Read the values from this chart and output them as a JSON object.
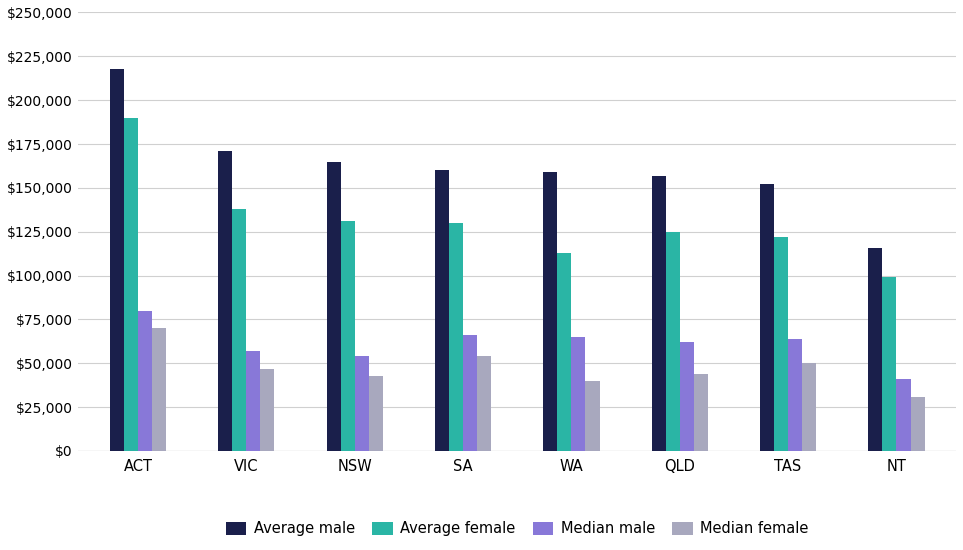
{
  "categories": [
    "ACT",
    "VIC",
    "NSW",
    "SA",
    "WA",
    "QLD",
    "TAS",
    "NT"
  ],
  "series": {
    "Average male": [
      218000,
      171000,
      165000,
      160000,
      159000,
      157000,
      152000,
      116000
    ],
    "Average female": [
      190000,
      138000,
      131000,
      130000,
      113000,
      125000,
      122000,
      99000
    ],
    "Median male": [
      80000,
      57000,
      54000,
      66000,
      65000,
      62000,
      64000,
      41000
    ],
    "Median female": [
      70000,
      47000,
      43000,
      54000,
      40000,
      44000,
      50000,
      31000
    ]
  },
  "colors": {
    "Average male": "#1a1f4b",
    "Average female": "#2ab5a5",
    "Median male": "#8878d8",
    "Median female": "#a8a8be"
  },
  "ylim": [
    0,
    250000
  ],
  "ytick_step": 25000,
  "background_color": "#ffffff",
  "grid_color": "#d0d0d0",
  "bar_width": 0.13
}
